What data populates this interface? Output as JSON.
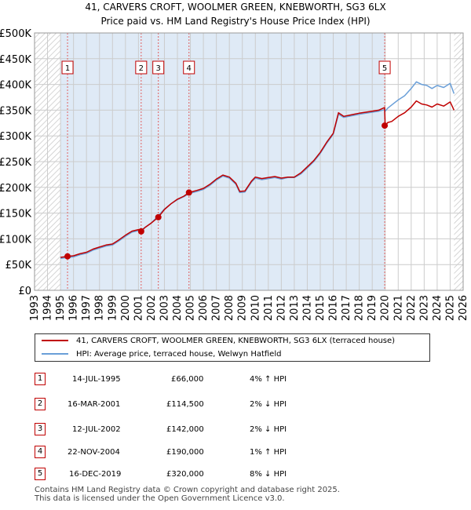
{
  "title": "41, CARVERS CROFT, WOOLMER GREEN, KNEBWORTH, SG3 6LX",
  "subtitle": "Price paid vs. HM Land Registry's House Price Index (HPI)",
  "colors": {
    "price": "#c00000",
    "hpi": "#6a9fd8",
    "shade": "#dce8f5",
    "grid": "#cccccc",
    "marker_line": "#e06060"
  },
  "chart_data": {
    "type": "line",
    "xlim": [
      1993,
      2026
    ],
    "ylim": [
      0,
      500000
    ],
    "y_ticks": [
      0,
      50000,
      100000,
      150000,
      200000,
      250000,
      300000,
      350000,
      400000,
      450000,
      500000
    ],
    "y_tick_labels": [
      "£0",
      "£50K",
      "£100K",
      "£150K",
      "£200K",
      "£250K",
      "£300K",
      "£350K",
      "£400K",
      "£450K",
      "£500K"
    ],
    "x_ticks": [
      "1993",
      "1994",
      "1995",
      "1996",
      "1997",
      "1998",
      "1999",
      "2000",
      "2001",
      "2002",
      "2003",
      "2004",
      "2005",
      "2006",
      "2007",
      "2008",
      "2009",
      "2010",
      "2011",
      "2012",
      "2013",
      "2014",
      "2015",
      "2016",
      "2017",
      "2018",
      "2019",
      "2020",
      "2021",
      "2022",
      "2023",
      "2024",
      "2025",
      "2026"
    ],
    "grid": true,
    "hatched_before": 1995.0,
    "hatched_after": 2025.3,
    "series": [
      {
        "name": "41, CARVERS CROFT, WOOLMER GREEN, KNEBWORTH, SG3 6LX (terraced house)",
        "x": [
          1995.0,
          1995.54,
          1996.0,
          1996.5,
          1997.0,
          1997.5,
          1998.0,
          1998.5,
          1999.0,
          1999.5,
          2000.0,
          2000.5,
          2001.0,
          2001.21,
          2001.5,
          2002.0,
          2002.53,
          2003.0,
          2003.5,
          2004.0,
          2004.5,
          2004.89,
          2005.5,
          2006.0,
          2006.5,
          2007.0,
          2007.5,
          2008.0,
          2008.5,
          2008.8,
          2009.2,
          2009.7,
          2010.0,
          2010.5,
          2011.0,
          2011.5,
          2012.0,
          2012.5,
          2013.0,
          2013.5,
          2014.0,
          2014.5,
          2015.0,
          2015.5,
          2016.0,
          2016.4,
          2016.8,
          2017.2,
          2017.6,
          2018.0,
          2018.5,
          2019.0,
          2019.5,
          2019.95,
          2020.0,
          2020.2,
          2020.5,
          2021.0,
          2021.5,
          2022.0,
          2022.4,
          2022.8,
          2023.2,
          2023.6,
          2024.0,
          2024.5,
          2025.0,
          2025.3
        ],
        "y": [
          64000,
          66000,
          67000,
          71000,
          74000,
          80000,
          84000,
          88000,
          90000,
          98000,
          107000,
          115000,
          118000,
          114500,
          122000,
          131000,
          142000,
          157000,
          168000,
          177000,
          183000,
          190000,
          194000,
          198000,
          206000,
          216000,
          224000,
          220000,
          208000,
          192000,
          193000,
          212000,
          220000,
          217000,
          219000,
          221000,
          218000,
          220000,
          220000,
          228000,
          240000,
          252000,
          268000,
          288000,
          305000,
          345000,
          338000,
          340000,
          342000,
          344000,
          346000,
          348000,
          350000,
          355000,
          320000,
          326000,
          328000,
          338000,
          345000,
          356000,
          368000,
          362000,
          360000,
          356000,
          362000,
          358000,
          366000,
          350000
        ]
      },
      {
        "name": "HPI: Average price, terraced house, Welwyn Hatfield",
        "x": [
          1995.0,
          1995.54,
          1996.0,
          1996.5,
          1997.0,
          1997.5,
          1998.0,
          1998.5,
          1999.0,
          1999.5,
          2000.0,
          2000.5,
          2001.0,
          2001.21,
          2001.5,
          2002.0,
          2002.53,
          2003.0,
          2003.5,
          2004.0,
          2004.5,
          2004.89,
          2005.5,
          2006.0,
          2006.5,
          2007.0,
          2007.5,
          2008.0,
          2008.5,
          2008.8,
          2009.2,
          2009.7,
          2010.0,
          2010.5,
          2011.0,
          2011.5,
          2012.0,
          2012.5,
          2013.0,
          2013.5,
          2014.0,
          2014.5,
          2015.0,
          2015.5,
          2016.0,
          2016.4,
          2016.8,
          2017.2,
          2017.6,
          2018.0,
          2018.5,
          2019.0,
          2019.5,
          2019.95,
          2020.0,
          2020.2,
          2020.5,
          2021.0,
          2021.5,
          2022.0,
          2022.4,
          2022.8,
          2023.2,
          2023.6,
          2024.0,
          2024.5,
          2025.0,
          2025.3
        ],
        "y": [
          62000,
          63500,
          65000,
          69000,
          72000,
          78000,
          82000,
          86000,
          88000,
          96000,
          105000,
          113000,
          116000,
          117000,
          122000,
          131000,
          145000,
          158000,
          168000,
          176000,
          182000,
          188000,
          192000,
          196000,
          204000,
          214000,
          222000,
          218000,
          206000,
          190000,
          191000,
          210000,
          218000,
          215000,
          217000,
          219000,
          216000,
          219000,
          219000,
          226000,
          238000,
          250000,
          266000,
          286000,
          303000,
          342000,
          336000,
          338000,
          340000,
          342000,
          344000,
          346000,
          348000,
          351000,
          348000,
          354000,
          360000,
          370000,
          378000,
          392000,
          405000,
          400000,
          398000,
          392000,
          398000,
          394000,
          402000,
          382000
        ]
      }
    ],
    "sale_points": [
      {
        "label": "1",
        "x": 1995.54,
        "y": 66000
      },
      {
        "label": "2",
        "x": 2001.21,
        "y": 114500
      },
      {
        "label": "3",
        "x": 2002.53,
        "y": 142000
      },
      {
        "label": "4",
        "x": 2004.89,
        "y": 190000
      },
      {
        "label": "5",
        "x": 2019.96,
        "y": 320000
      }
    ]
  },
  "legend": {
    "price_label": "41, CARVERS CROFT, WOOLMER GREEN, KNEBWORTH, SG3 6LX (terraced house)",
    "hpi_label": "HPI: Average price, terraced house, Welwyn Hatfield"
  },
  "sales": [
    {
      "num": "1",
      "date": "14-JUL-1995",
      "price": "£66,000",
      "hpi": "4% ↑ HPI"
    },
    {
      "num": "2",
      "date": "16-MAR-2001",
      "price": "£114,500",
      "hpi": "2% ↓ HPI"
    },
    {
      "num": "3",
      "date": "12-JUL-2002",
      "price": "£142,000",
      "hpi": "2% ↓ HPI"
    },
    {
      "num": "4",
      "date": "22-NOV-2004",
      "price": "£190,000",
      "hpi": "1% ↑ HPI"
    },
    {
      "num": "5",
      "date": "16-DEC-2019",
      "price": "£320,000",
      "hpi": "8% ↓ HPI"
    }
  ],
  "footer": {
    "line1": "Contains HM Land Registry data © Crown copyright and database right 2025.",
    "line2": "This data is licensed under the Open Government Licence v3.0."
  }
}
